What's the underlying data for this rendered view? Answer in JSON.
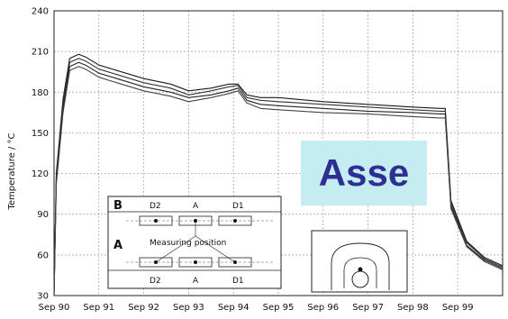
{
  "chart_data": {
    "type": "line",
    "ylabel": "Temperature / °C",
    "xlabel": "",
    "ylim": [
      30,
      240
    ],
    "yticks": [
      "30",
      "60",
      "90",
      "120",
      "150",
      "180",
      "210",
      "240"
    ],
    "xticks": [
      "Sep 90",
      "Sep 91",
      "Sep 92",
      "Sep 93",
      "Sep 94",
      "Sep 95",
      "Sep 96",
      "Sep 97",
      "Sep 98",
      "Sep 99"
    ],
    "grid": true,
    "series": [
      {
        "x": [
          0,
          0.05,
          0.2,
          0.35,
          0.55,
          0.7,
          1.0,
          1.4,
          2.0,
          2.6,
          3.0,
          3.5,
          3.9,
          4.1,
          4.3,
          4.6,
          5.0,
          6.0,
          7.0,
          8.0,
          8.6,
          8.72,
          8.85,
          9.2,
          9.6,
          10.0
        ],
        "values": [
          30,
          120,
          175,
          205,
          208,
          206,
          200,
          196,
          190,
          186,
          181,
          183,
          186,
          186,
          178,
          176,
          176,
          173,
          171,
          169,
          168,
          168,
          100,
          70,
          58,
          52
        ]
      },
      {
        "x": [
          0,
          0.05,
          0.2,
          0.35,
          0.55,
          0.7,
          1.0,
          1.4,
          2.0,
          2.6,
          3.0,
          3.5,
          3.9,
          4.1,
          4.3,
          4.6,
          5.0,
          6.0,
          7.0,
          8.0,
          8.6,
          8.72,
          8.85,
          9.2,
          9.6,
          10.0
        ],
        "values": [
          30,
          118,
          172,
          202,
          205,
          203,
          197,
          193,
          187,
          183,
          178,
          181,
          184,
          185,
          176,
          174,
          173,
          171,
          169,
          167,
          166,
          166,
          98,
          69,
          57,
          51
        ]
      },
      {
        "x": [
          0,
          0.05,
          0.2,
          0.35,
          0.55,
          0.7,
          1.0,
          1.4,
          2.0,
          2.6,
          3.0,
          3.5,
          3.9,
          4.1,
          4.3,
          4.6,
          5.0,
          6.0,
          7.0,
          8.0,
          8.6,
          8.72,
          8.85,
          9.2,
          9.6,
          10.0
        ],
        "values": [
          30,
          115,
          168,
          199,
          202,
          200,
          194,
          190,
          184,
          180,
          176,
          178,
          181,
          183,
          174,
          171,
          170,
          168,
          166,
          165,
          164,
          164,
          96,
          67,
          56,
          50
        ]
      },
      {
        "x": [
          0,
          0.05,
          0.2,
          0.35,
          0.55,
          0.7,
          1.0,
          1.4,
          2.0,
          2.6,
          3.0,
          3.5,
          3.9,
          4.1,
          4.3,
          4.6,
          5.0,
          6.0,
          7.0,
          8.0,
          8.6,
          8.72,
          8.85,
          9.2,
          9.6,
          10.0
        ],
        "values": [
          30,
          112,
          165,
          196,
          199,
          197,
          191,
          187,
          181,
          177,
          173,
          176,
          179,
          181,
          172,
          168,
          167,
          165,
          164,
          162,
          161,
          161,
          94,
          66,
          55,
          49
        ]
      }
    ]
  },
  "inset": {
    "b_label": "B",
    "a_label": "A",
    "top_labels": [
      "D2",
      "A",
      "D1"
    ],
    "bottom_labels": [
      "D2",
      "A",
      "D1"
    ],
    "caption": "Measuring position"
  },
  "overlay": {
    "title": "Asse",
    "bg_color": "#c5ecf1",
    "text_color": "#2f2f93"
  }
}
